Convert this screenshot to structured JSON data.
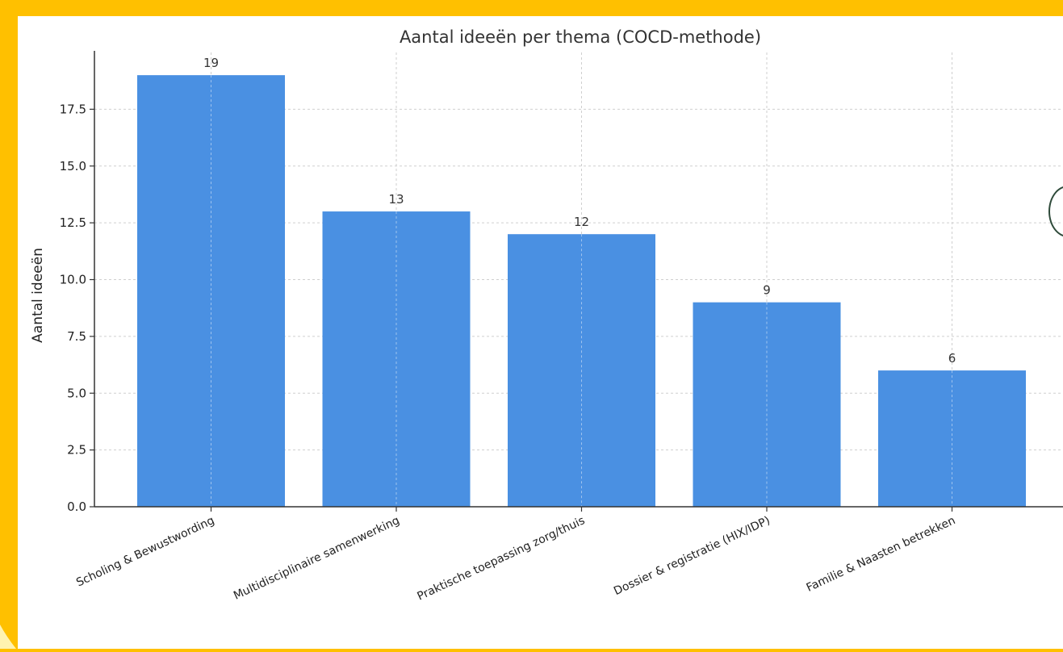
{
  "chart_data": {
    "type": "bar",
    "title": "Aantal ideeën per thema (COCD-methode)",
    "xlabel": "",
    "ylabel": "Aantal ideeën",
    "categories": [
      "Scholing & Bewustwording",
      "Multidisciplinaire samenwerking",
      "Praktische toepassing zorg/thuis",
      "Dossier & registratie (HIX/IDP)",
      "Familie & Naasten betrekken"
    ],
    "values": [
      19,
      13,
      12,
      9,
      6
    ],
    "data_labels": [
      "19",
      "13",
      "12",
      "9",
      "6"
    ],
    "ylim": [
      0,
      20
    ],
    "yticks": [
      0.0,
      2.5,
      5.0,
      7.5,
      10.0,
      12.5,
      15.0,
      17.5
    ],
    "ytick_labels": [
      "0.0",
      "2.5",
      "5.0",
      "7.5",
      "10.0",
      "12.5",
      "15.0",
      "17.5"
    ],
    "grid": true,
    "legend": "none",
    "bar_color": "#4A90E2",
    "background_color": "#FFC000"
  }
}
